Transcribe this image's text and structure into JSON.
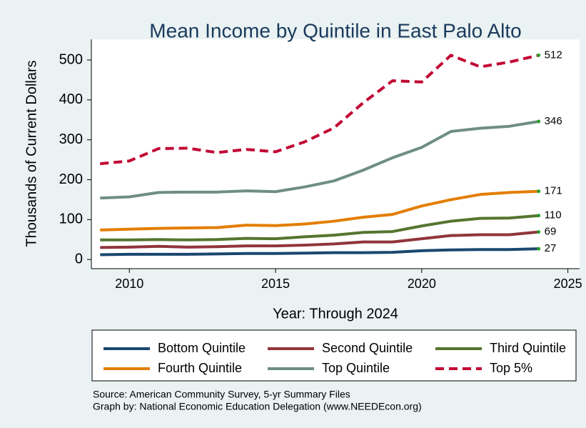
{
  "chart_data": {
    "type": "line",
    "title": "Mean Income by Quintile in East Palo Alto",
    "x_label": "Year: Through 2024",
    "y_label": "Thousands of Current Dollars",
    "x": [
      2009,
      2010,
      2011,
      2012,
      2013,
      2014,
      2015,
      2016,
      2017,
      2018,
      2019,
      2020,
      2021,
      2022,
      2023,
      2024
    ],
    "xlim": [
      2008.7,
      2025.4
    ],
    "xticks": [
      2010,
      2015,
      2020,
      2025
    ],
    "ylim": [
      -23,
      552
    ],
    "yticks": [
      0,
      100,
      200,
      300,
      400,
      500
    ],
    "grid": false,
    "series": [
      {
        "name": "Bottom Quintile",
        "color": "#1a476f",
        "values": [
          12,
          13,
          13,
          13,
          14,
          15,
          15,
          16,
          17,
          17,
          18,
          22,
          24,
          25,
          25,
          27
        ]
      },
      {
        "name": "Second Quintile",
        "color": "#90353b",
        "values": [
          30,
          31,
          33,
          31,
          32,
          34,
          34,
          36,
          39,
          44,
          44,
          52,
          60,
          62,
          62,
          69
        ]
      },
      {
        "name": "Third Quintile",
        "color": "#55752f",
        "values": [
          49,
          49,
          50,
          49,
          50,
          53,
          52,
          57,
          61,
          68,
          70,
          84,
          96,
          103,
          104,
          110
        ]
      },
      {
        "name": "Fourth Quintile",
        "color": "#e37e00",
        "values": [
          74,
          76,
          78,
          79,
          80,
          86,
          85,
          89,
          96,
          106,
          113,
          134,
          150,
          163,
          168,
          171
        ]
      },
      {
        "name": "Top Quintile",
        "color": "#6e8e84",
        "values": [
          154,
          157,
          168,
          169,
          169,
          172,
          170,
          182,
          197,
          224,
          255,
          281,
          321,
          329,
          334,
          346
        ]
      },
      {
        "name": "Top 5%",
        "color": "#c10534",
        "dashed": true,
        "values": [
          240,
          247,
          278,
          279,
          268,
          276,
          270,
          295,
          330,
          393,
          448,
          445,
          512,
          483,
          495,
          512
        ]
      }
    ],
    "source": [
      "Source: American Community Survey, 5-yr Summary Files",
      "Graph by: National Economic Education Delegation (www.NEEDEcon.org)"
    ]
  }
}
